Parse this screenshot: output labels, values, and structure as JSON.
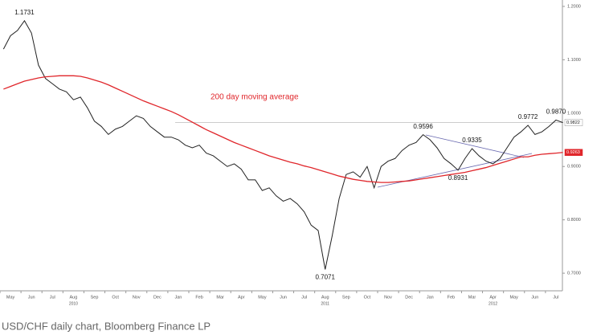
{
  "chart_data": {
    "type": "line",
    "caption": "USD/CHF daily chart, Bloomberg Finance LP",
    "annotation": "200 day moving average",
    "categories": [
      null,
      "May",
      null,
      null,
      "Jun",
      null,
      null,
      "Jul",
      null,
      null,
      "Aug",
      null,
      null,
      "Sep",
      null,
      null,
      "Oct",
      null,
      null,
      "Nov",
      null,
      null,
      "Dec",
      null,
      null,
      "Jan",
      null,
      null,
      "Feb",
      null,
      null,
      "Mar",
      null,
      null,
      "Apr",
      null,
      null,
      "May",
      null,
      null,
      "Jun",
      null,
      null,
      "Jul",
      null,
      null,
      "Aug",
      null,
      null,
      "Sep",
      null,
      null,
      "Oct",
      null,
      null,
      "Nov",
      null,
      null,
      "Dec",
      null,
      null,
      "Jan",
      null,
      null,
      "Feb",
      null,
      null,
      "Mar",
      null,
      null,
      "Apr",
      null,
      null,
      "May",
      null,
      null,
      "Jun",
      null,
      null,
      "Jul",
      null
    ],
    "year_labels": [
      "2010",
      "2011",
      "2012"
    ],
    "series": [
      {
        "name": "USD/CHF",
        "color": "#222222",
        "values": [
          1.12,
          1.145,
          1.155,
          1.1731,
          1.15,
          1.09,
          1.065,
          1.055,
          1.045,
          1.04,
          1.025,
          1.03,
          1.01,
          0.985,
          0.975,
          0.96,
          0.97,
          0.975,
          0.985,
          0.995,
          0.99,
          0.975,
          0.965,
          0.955,
          0.955,
          0.95,
          0.94,
          0.935,
          0.94,
          0.925,
          0.92,
          0.91,
          0.9,
          0.905,
          0.895,
          0.875,
          0.875,
          0.855,
          0.86,
          0.845,
          0.835,
          0.84,
          0.83,
          0.815,
          0.79,
          0.78,
          0.7071,
          0.77,
          0.84,
          0.885,
          0.89,
          0.88,
          0.9,
          0.86,
          0.9,
          0.91,
          0.915,
          0.93,
          0.94,
          0.945,
          0.9596,
          0.95,
          0.935,
          0.915,
          0.905,
          0.8931,
          0.915,
          0.9335,
          0.92,
          0.91,
          0.905,
          0.915,
          0.935,
          0.955,
          0.965,
          0.9772,
          0.96,
          0.965,
          0.975,
          0.987,
          0.9822
        ],
        "value_labels": [
          null,
          null,
          null,
          "1.1731",
          null,
          null,
          null,
          null,
          null,
          null,
          null,
          null,
          null,
          null,
          null,
          null,
          null,
          null,
          null,
          null,
          null,
          null,
          null,
          null,
          null,
          null,
          null,
          null,
          null,
          null,
          null,
          null,
          null,
          null,
          null,
          null,
          null,
          null,
          null,
          null,
          null,
          null,
          null,
          null,
          null,
          null,
          "0.7071",
          null,
          null,
          null,
          null,
          null,
          null,
          null,
          null,
          null,
          null,
          null,
          null,
          null,
          "0.9596",
          null,
          null,
          null,
          null,
          "0.8931",
          null,
          "0.9335",
          null,
          null,
          null,
          null,
          null,
          null,
          null,
          "0.9772",
          null,
          null,
          null,
          "0.9870",
          "0.9822"
        ]
      },
      {
        "name": "200 day moving average",
        "color": "#e0262b",
        "values": [
          1.045,
          1.05,
          1.055,
          1.06,
          1.063,
          1.066,
          1.068,
          1.069,
          1.07,
          1.07,
          1.07,
          1.069,
          1.066,
          1.062,
          1.058,
          1.053,
          1.047,
          1.041,
          1.035,
          1.029,
          1.023,
          1.018,
          1.013,
          1.008,
          1.003,
          0.997,
          0.99,
          0.983,
          0.976,
          0.969,
          0.963,
          0.957,
          0.951,
          0.945,
          0.94,
          0.935,
          0.93,
          0.925,
          0.92,
          0.916,
          0.912,
          0.908,
          0.905,
          0.901,
          0.898,
          0.894,
          0.89,
          0.886,
          0.882,
          0.879,
          0.876,
          0.874,
          0.872,
          0.871,
          0.87,
          0.87,
          0.871,
          0.872,
          0.873,
          0.875,
          0.877,
          0.879,
          0.881,
          0.883,
          0.885,
          0.887,
          0.889,
          0.892,
          0.895,
          0.898,
          0.902,
          0.906,
          0.91,
          0.914,
          0.918,
          0.918,
          0.921,
          0.923,
          0.924,
          0.925,
          0.9263
        ],
        "value_labels": [
          null,
          null,
          null,
          null,
          null,
          null,
          null,
          null,
          null,
          null,
          null,
          null,
          null,
          null,
          null,
          null,
          null,
          null,
          null,
          null,
          null,
          null,
          null,
          null,
          null,
          null,
          null,
          null,
          null,
          null,
          null,
          null,
          null,
          null,
          null,
          null,
          null,
          null,
          null,
          null,
          null,
          null,
          null,
          null,
          null,
          null,
          null,
          null,
          null,
          null,
          null,
          null,
          null,
          null,
          null,
          null,
          null,
          null,
          null,
          null,
          null,
          null,
          null,
          null,
          null,
          null,
          null,
          null,
          null,
          null,
          null,
          null,
          null,
          null,
          null,
          null,
          null,
          null,
          null,
          null,
          "0.9263"
        ]
      }
    ],
    "ylim": [
      0.667,
      1.212
    ],
    "yticks": [
      {
        "value": 0.7,
        "label": "0.7000"
      },
      {
        "value": 0.8,
        "label": "0.8000"
      },
      {
        "value": 0.9,
        "label": "0.9000"
      },
      {
        "value": 1.0,
        "label": "1.0000"
      },
      {
        "value": 1.1,
        "label": "1.1000"
      },
      {
        "value": 1.2,
        "label": "1.2000"
      }
    ],
    "grid": false
  }
}
